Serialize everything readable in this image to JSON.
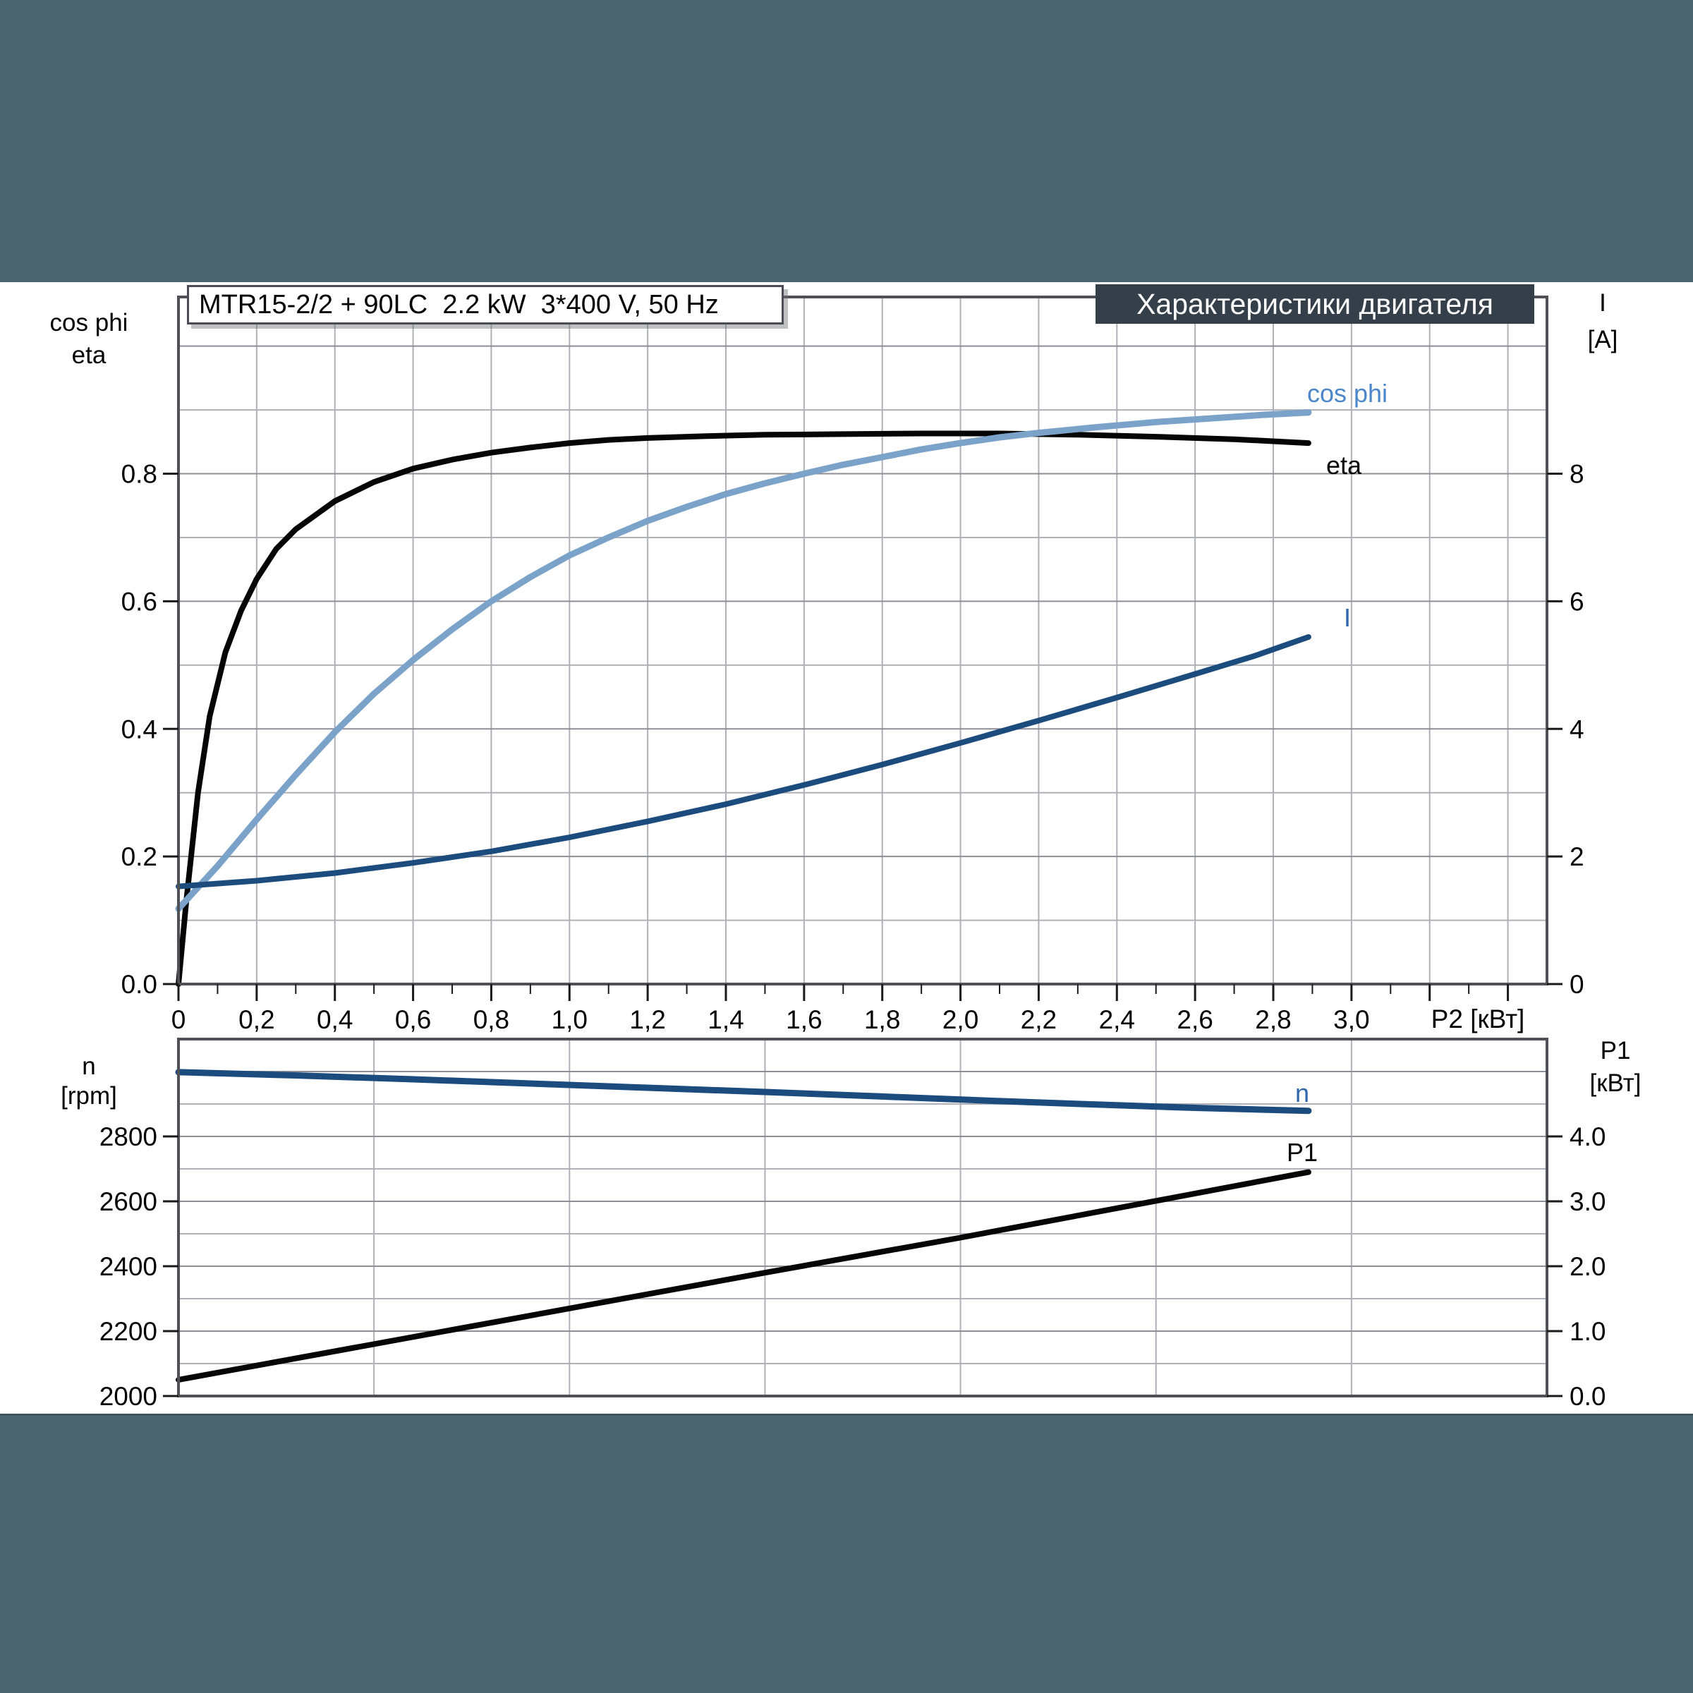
{
  "page": {
    "background": "#4C6670",
    "content_background": "#FFFFFF",
    "header_box": {
      "text": "MTR15-2/2 + 90LC  2.2 kW  3*400 V, 50 Hz"
    },
    "title_box": {
      "text": "Характеристики двигателя",
      "background": "#353F4A",
      "color": "#FFFFFF"
    }
  },
  "axes_labels": {
    "top_left_line1": "cos phi",
    "top_left_line2": "eta",
    "top_right_line1": "I",
    "top_right_line2": "[A]",
    "bottom_left_line1": "n",
    "bottom_left_line2": "[rpm]",
    "bottom_right_line1": "P1",
    "bottom_right_line2": "[кВт]",
    "x_axis_title": "P2 [кВт]"
  },
  "curve_labels": {
    "cos_phi": "cos phi",
    "eta": "eta",
    "current": "I",
    "speed": "n",
    "power_in": "P1"
  },
  "colors": {
    "eta_curve": "#050505",
    "cos_phi_curve": "#7BA3C9",
    "cos_phi_label": "#4C87C9",
    "current_curve": "#1C4C7E",
    "blue_label": "#2F66AD",
    "speed_curve": "#1C4C7E",
    "power_in_curve": "#050505",
    "grid_minor": "#B0B0B8",
    "grid_major": "#8E8E96",
    "plot_border": "#4E5156",
    "tick": "#1A1A1A"
  },
  "chart_data": [
    {
      "type": "line",
      "title": "MTR15-2/2 + 90LC  2.2 kW  3*400 V, 50 Hz",
      "xlabel": "P2 [кВт]",
      "ylabel_left": "cos phi / eta",
      "ylabel_right": "I [A]",
      "xlim": [
        0,
        3.5
      ],
      "ylim_left": [
        0,
        1.077
      ],
      "ylim_right": [
        0,
        10.77
      ],
      "grid": {
        "v_step": 0.2,
        "h_step": 0.1,
        "h_major_step": 0.2,
        "x_tick_minor": 0.1,
        "x_tick_major": 0.2
      },
      "x_ticks": {
        "values": [
          0,
          0.2,
          0.4,
          0.6,
          0.8,
          1.0,
          1.2,
          1.4,
          1.6,
          1.8,
          2.0,
          2.2,
          2.4,
          2.6,
          2.8,
          3.0
        ],
        "labels": [
          "0",
          "0,2",
          "0,4",
          "0,6",
          "0,8",
          "1,0",
          "1,2",
          "1,4",
          "1,6",
          "1,8",
          "2,0",
          "2,2",
          "2,4",
          "2,6",
          "2,8",
          "3,0"
        ]
      },
      "y_ticks_left": {
        "values": [
          0,
          0.2,
          0.4,
          0.6,
          0.8
        ],
        "labels": [
          "0.0",
          "0.2",
          "0.4",
          "0.6",
          "0.8"
        ]
      },
      "y_ticks_right": {
        "values": [
          0,
          2,
          4,
          6,
          8
        ],
        "labels": [
          "0",
          "2",
          "4",
          "6",
          "8"
        ]
      },
      "series": [
        {
          "name": "eta",
          "axis": "left",
          "color": "#050505",
          "width": 8,
          "points": [
            [
              0,
              0
            ],
            [
              0.02,
              0.13
            ],
            [
              0.05,
              0.3
            ],
            [
              0.08,
              0.42
            ],
            [
              0.12,
              0.52
            ],
            [
              0.16,
              0.585
            ],
            [
              0.2,
              0.635
            ],
            [
              0.25,
              0.682
            ],
            [
              0.3,
              0.713
            ],
            [
              0.4,
              0.757
            ],
            [
              0.5,
              0.787
            ],
            [
              0.6,
              0.808
            ],
            [
              0.7,
              0.822
            ],
            [
              0.8,
              0.833
            ],
            [
              0.9,
              0.841
            ],
            [
              1.0,
              0.848
            ],
            [
              1.1,
              0.853
            ],
            [
              1.2,
              0.856
            ],
            [
              1.35,
              0.859
            ],
            [
              1.5,
              0.861
            ],
            [
              1.7,
              0.862
            ],
            [
              1.9,
              0.863
            ],
            [
              2.1,
              0.863
            ],
            [
              2.3,
              0.861
            ],
            [
              2.5,
              0.858
            ],
            [
              2.7,
              0.854
            ],
            [
              2.89,
              0.848
            ]
          ]
        },
        {
          "name": "cos phi",
          "axis": "left",
          "color": "#7BA3C9",
          "width": 9,
          "points": [
            [
              0,
              0.118
            ],
            [
              0.1,
              0.185
            ],
            [
              0.2,
              0.258
            ],
            [
              0.3,
              0.328
            ],
            [
              0.4,
              0.395
            ],
            [
              0.5,
              0.455
            ],
            [
              0.6,
              0.508
            ],
            [
              0.7,
              0.556
            ],
            [
              0.8,
              0.6
            ],
            [
              0.9,
              0.638
            ],
            [
              1.0,
              0.672
            ],
            [
              1.1,
              0.7
            ],
            [
              1.2,
              0.726
            ],
            [
              1.3,
              0.748
            ],
            [
              1.4,
              0.768
            ],
            [
              1.5,
              0.785
            ],
            [
              1.6,
              0.8
            ],
            [
              1.7,
              0.814
            ],
            [
              1.8,
              0.826
            ],
            [
              1.9,
              0.838
            ],
            [
              2.0,
              0.848
            ],
            [
              2.1,
              0.857
            ],
            [
              2.2,
              0.864
            ],
            [
              2.35,
              0.873
            ],
            [
              2.5,
              0.881
            ],
            [
              2.65,
              0.887
            ],
            [
              2.77,
              0.892
            ],
            [
              2.89,
              0.896
            ]
          ]
        },
        {
          "name": "I",
          "axis": "right",
          "color": "#1C4C7E",
          "width": 8,
          "points": [
            [
              0,
              1.53
            ],
            [
              0.2,
              1.62
            ],
            [
              0.4,
              1.74
            ],
            [
              0.6,
              1.9
            ],
            [
              0.8,
              2.08
            ],
            [
              1.0,
              2.3
            ],
            [
              1.2,
              2.55
            ],
            [
              1.4,
              2.82
            ],
            [
              1.6,
              3.12
            ],
            [
              1.8,
              3.44
            ],
            [
              2.0,
              3.78
            ],
            [
              2.2,
              4.13
            ],
            [
              2.4,
              4.49
            ],
            [
              2.6,
              4.86
            ],
            [
              2.75,
              5.14
            ],
            [
              2.89,
              5.44
            ]
          ]
        }
      ]
    },
    {
      "type": "line",
      "xlabel": "P2 [кВт]",
      "ylabel_left": "n [rpm]",
      "ylabel_right": "P1 [кВт]",
      "xlim": [
        0,
        3.5
      ],
      "ylim_left": [
        2000,
        3100
      ],
      "ylim_right": [
        0,
        5.5
      ],
      "grid": {
        "v_step": 0.5,
        "h_step": 100,
        "h_major_step": 200
      },
      "x_ticks": {
        "values": [],
        "labels": []
      },
      "y_ticks_left": {
        "values": [
          2000,
          2200,
          2400,
          2600,
          2800
        ],
        "labels": [
          "2000",
          "2200",
          "2400",
          "2600",
          "2800"
        ]
      },
      "y_ticks_right": {
        "values": [
          0,
          1,
          2,
          3,
          4
        ],
        "labels": [
          "0.0",
          "1.0",
          "2.0",
          "3.0",
          "4.0"
        ]
      },
      "series": [
        {
          "name": "n",
          "axis": "left",
          "color": "#1C4C7E",
          "width": 9,
          "points": [
            [
              0,
              2998
            ],
            [
              0.3,
              2988
            ],
            [
              0.6,
              2976
            ],
            [
              0.9,
              2963
            ],
            [
              1.2,
              2950
            ],
            [
              1.5,
              2937
            ],
            [
              1.8,
              2923
            ],
            [
              2.1,
              2909
            ],
            [
              2.4,
              2896
            ],
            [
              2.6,
              2888
            ],
            [
              2.89,
              2879
            ]
          ]
        },
        {
          "name": "P1",
          "axis": "right",
          "color": "#050505",
          "width": 8,
          "points": [
            [
              0,
              0.25
            ],
            [
              0.5,
              0.8
            ],
            [
              1.0,
              1.35
            ],
            [
              1.5,
              1.9
            ],
            [
              2.0,
              2.44
            ],
            [
              2.45,
              2.95
            ],
            [
              2.89,
              3.45
            ]
          ]
        }
      ]
    }
  ]
}
